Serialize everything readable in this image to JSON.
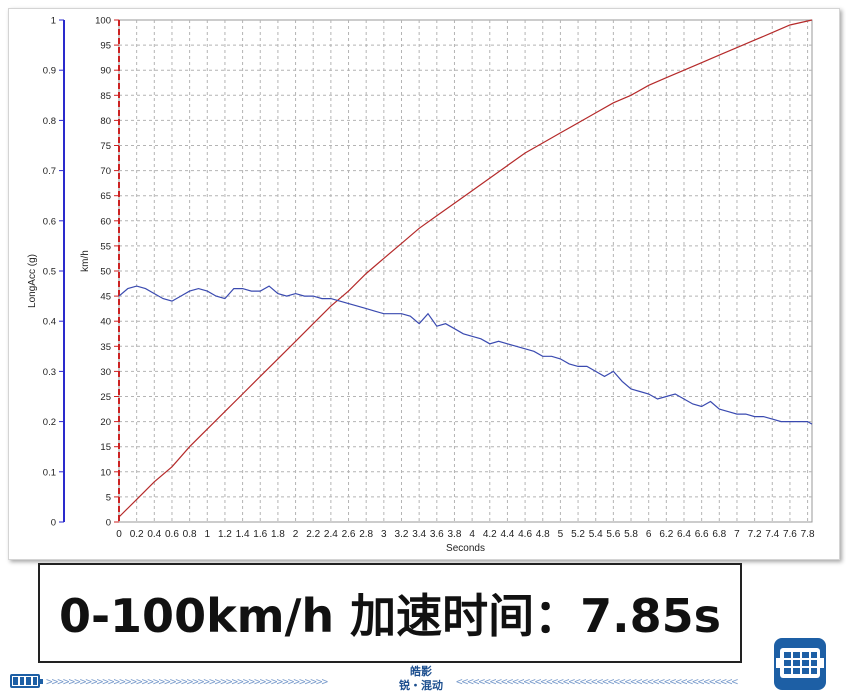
{
  "chart_data": {
    "type": "line",
    "xlabel": "Seconds",
    "xlim": [
      0,
      7.85
    ],
    "x_ticks": [
      "0",
      "0.2",
      "0.4",
      "0.6",
      "0.8",
      "1",
      "1.2",
      "1.4",
      "1.6",
      "1.8",
      "2",
      "2.2",
      "2.4",
      "2.6",
      "2.8",
      "3",
      "3.2",
      "3.4",
      "3.6",
      "3.8",
      "4",
      "4.2",
      "4.4",
      "4.6",
      "4.8",
      "5",
      "5.2",
      "5.4",
      "5.6",
      "5.8",
      "6",
      "6.2",
      "6.4",
      "6.6",
      "6.8",
      "7",
      "7.2",
      "7.4",
      "7.6",
      "7.8"
    ],
    "grid": true,
    "axes": [
      {
        "id": "acc",
        "label": "LongAcc (g)",
        "color": "#2a2acc",
        "ylim": [
          0,
          1
        ],
        "ticks": [
          "0",
          "0.1",
          "0.2",
          "0.3",
          "0.4",
          "0.5",
          "0.6",
          "0.7",
          "0.8",
          "0.9",
          "1"
        ]
      },
      {
        "id": "speed",
        "label": "km/h",
        "color": "#cc2222",
        "ylim": [
          0,
          100
        ],
        "ticks": [
          "0",
          "5",
          "10",
          "15",
          "20",
          "25",
          "30",
          "35",
          "40",
          "45",
          "50",
          "55",
          "60",
          "65",
          "70",
          "75",
          "80",
          "85",
          "90",
          "95",
          "100"
        ]
      }
    ],
    "series": [
      {
        "axis": "speed",
        "color": "#b52a2a",
        "x": [
          0,
          0.2,
          0.4,
          0.6,
          0.8,
          1.0,
          1.2,
          1.4,
          1.6,
          1.8,
          2.0,
          2.2,
          2.4,
          2.6,
          2.8,
          3.0,
          3.2,
          3.4,
          3.6,
          3.8,
          4.0,
          4.2,
          4.4,
          4.6,
          4.8,
          5.0,
          5.2,
          5.4,
          5.6,
          5.8,
          6.0,
          6.2,
          6.4,
          6.6,
          6.8,
          7.0,
          7.2,
          7.4,
          7.6,
          7.85
        ],
        "y": [
          1.0,
          4.5,
          8.0,
          11.0,
          15.0,
          18.5,
          22.0,
          25.5,
          29.0,
          32.5,
          36.0,
          39.5,
          43.0,
          46.0,
          49.5,
          52.5,
          55.5,
          58.5,
          61.0,
          63.5,
          66.0,
          68.5,
          71.0,
          73.5,
          75.5,
          77.5,
          79.5,
          81.5,
          83.5,
          85.0,
          87.0,
          88.5,
          90.0,
          91.5,
          93.0,
          94.5,
          96.0,
          97.5,
          99.0,
          100.0
        ]
      },
      {
        "axis": "acc",
        "color": "#3a4ab0",
        "x": [
          0,
          0.1,
          0.2,
          0.3,
          0.4,
          0.5,
          0.6,
          0.7,
          0.8,
          0.9,
          1.0,
          1.1,
          1.2,
          1.3,
          1.4,
          1.5,
          1.6,
          1.7,
          1.8,
          1.9,
          2.0,
          2.1,
          2.2,
          2.3,
          2.4,
          2.5,
          2.6,
          2.7,
          2.8,
          2.9,
          3.0,
          3.1,
          3.2,
          3.3,
          3.4,
          3.5,
          3.6,
          3.7,
          3.8,
          3.9,
          4.0,
          4.1,
          4.2,
          4.3,
          4.4,
          4.5,
          4.6,
          4.7,
          4.8,
          4.9,
          5.0,
          5.1,
          5.2,
          5.3,
          5.4,
          5.5,
          5.6,
          5.7,
          5.8,
          5.9,
          6.0,
          6.1,
          6.2,
          6.3,
          6.4,
          6.5,
          6.6,
          6.7,
          6.8,
          6.9,
          7.0,
          7.1,
          7.2,
          7.3,
          7.4,
          7.5,
          7.6,
          7.7,
          7.8,
          7.85
        ],
        "y": [
          0.45,
          0.465,
          0.47,
          0.465,
          0.455,
          0.445,
          0.44,
          0.45,
          0.46,
          0.465,
          0.46,
          0.45,
          0.445,
          0.465,
          0.465,
          0.46,
          0.46,
          0.47,
          0.455,
          0.45,
          0.455,
          0.45,
          0.45,
          0.445,
          0.445,
          0.44,
          0.435,
          0.43,
          0.425,
          0.42,
          0.415,
          0.415,
          0.415,
          0.41,
          0.395,
          0.415,
          0.39,
          0.395,
          0.385,
          0.375,
          0.37,
          0.365,
          0.355,
          0.36,
          0.355,
          0.35,
          0.345,
          0.34,
          0.33,
          0.33,
          0.325,
          0.315,
          0.31,
          0.31,
          0.3,
          0.29,
          0.3,
          0.28,
          0.265,
          0.26,
          0.255,
          0.245,
          0.25,
          0.255,
          0.245,
          0.235,
          0.23,
          0.24,
          0.225,
          0.22,
          0.215,
          0.215,
          0.21,
          0.21,
          0.205,
          0.2,
          0.2,
          0.2,
          0.2,
          0.195
        ]
      }
    ]
  },
  "headline": "0-100km/h  加速时间：7.85s",
  "footer": {
    "brand_line1": "皓影",
    "brand_line2": "锐・混动",
    "arrows_left": ">>>>>>>>>>>>>>>>>>>>>>>>>>>>>>>>>>>>>>>>>>>>>>>>>>",
    "arrows_right": "<<<<<<<<<<<<<<<<<<<<<<<<<<<<<<<<<<<<<<<<<<<<<<<<<<",
    "battery_icon": "battery-icon",
    "brand_icon": "engine-grid-icon",
    "accent": "#1d5fa5"
  }
}
